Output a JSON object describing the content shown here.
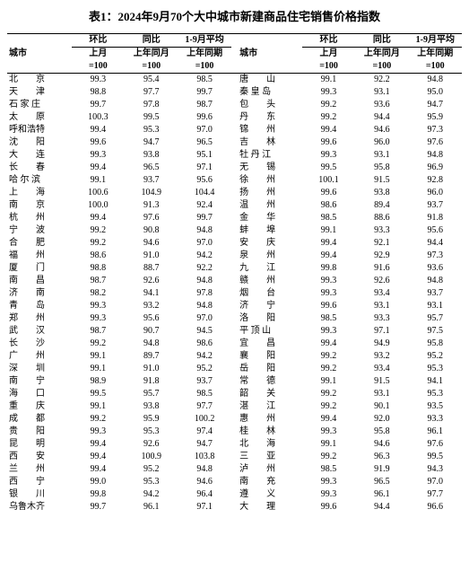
{
  "title": "表1：2024年9月70个大中城市新建商品住宅销售价格指数",
  "header": {
    "city": "城市",
    "grp1": "环比",
    "grp2": "同比",
    "grp3": "1-9月平均",
    "sub1a": "上月",
    "sub1b": "=100",
    "sub2a": "上年同月",
    "sub2b": "=100",
    "sub3a": "上年同期",
    "sub3b": "=100"
  },
  "rows": [
    {
      "c1": "北　　京",
      "v1": "99.3",
      "v2": "95.4",
      "v3": "98.5",
      "c2": "唐　　山",
      "v4": "99.1",
      "v5": "92.2",
      "v6": "94.8"
    },
    {
      "c1": "天　　津",
      "v1": "98.8",
      "v2": "97.7",
      "v3": "99.7",
      "c2": "秦 皇 岛",
      "v4": "99.3",
      "v5": "93.1",
      "v6": "95.0"
    },
    {
      "c1": "石 家 庄",
      "v1": "99.7",
      "v2": "97.8",
      "v3": "98.7",
      "c2": "包　　头",
      "v4": "99.2",
      "v5": "93.6",
      "v6": "94.7"
    },
    {
      "c1": "太　　原",
      "v1": "100.3",
      "v2": "99.5",
      "v3": "99.6",
      "c2": "丹　　东",
      "v4": "99.2",
      "v5": "94.4",
      "v6": "95.9"
    },
    {
      "c1": "呼和浩特",
      "v1": "99.4",
      "v2": "95.3",
      "v3": "97.0",
      "c2": "锦　　州",
      "v4": "99.4",
      "v5": "94.6",
      "v6": "97.3"
    },
    {
      "c1": "沈　　阳",
      "v1": "99.6",
      "v2": "94.7",
      "v3": "96.5",
      "c2": "吉　　林",
      "v4": "99.6",
      "v5": "96.0",
      "v6": "97.6"
    },
    {
      "c1": "大　　连",
      "v1": "99.3",
      "v2": "93.8",
      "v3": "95.1",
      "c2": "牡 丹 江",
      "v4": "99.3",
      "v5": "93.1",
      "v6": "94.8"
    },
    {
      "c1": "长　　春",
      "v1": "99.4",
      "v2": "96.5",
      "v3": "97.1",
      "c2": "无　　锡",
      "v4": "99.5",
      "v5": "95.8",
      "v6": "96.9"
    },
    {
      "c1": "哈 尔 滨",
      "v1": "99.1",
      "v2": "93.7",
      "v3": "95.6",
      "c2": "徐　　州",
      "v4": "100.1",
      "v5": "91.5",
      "v6": "92.8"
    },
    {
      "c1": "上　　海",
      "v1": "100.6",
      "v2": "104.9",
      "v3": "104.4",
      "c2": "扬　　州",
      "v4": "99.6",
      "v5": "93.8",
      "v6": "96.0"
    },
    {
      "c1": "南　　京",
      "v1": "100.0",
      "v2": "91.3",
      "v3": "92.4",
      "c2": "温　　州",
      "v4": "98.6",
      "v5": "89.4",
      "v6": "93.7"
    },
    {
      "c1": "杭　　州",
      "v1": "99.4",
      "v2": "97.6",
      "v3": "99.7",
      "c2": "金　　华",
      "v4": "98.5",
      "v5": "88.6",
      "v6": "91.8"
    },
    {
      "c1": "宁　　波",
      "v1": "99.2",
      "v2": "90.8",
      "v3": "94.8",
      "c2": "蚌　　埠",
      "v4": "99.1",
      "v5": "93.3",
      "v6": "95.6"
    },
    {
      "c1": "合　　肥",
      "v1": "99.2",
      "v2": "94.6",
      "v3": "97.0",
      "c2": "安　　庆",
      "v4": "99.4",
      "v5": "92.1",
      "v6": "94.4"
    },
    {
      "c1": "福　　州",
      "v1": "98.6",
      "v2": "91.0",
      "v3": "94.2",
      "c2": "泉　　州",
      "v4": "99.4",
      "v5": "92.9",
      "v6": "97.3"
    },
    {
      "c1": "厦　　门",
      "v1": "98.8",
      "v2": "88.7",
      "v3": "92.2",
      "c2": "九　　江",
      "v4": "99.8",
      "v5": "91.6",
      "v6": "93.6"
    },
    {
      "c1": "南　　昌",
      "v1": "98.7",
      "v2": "92.6",
      "v3": "94.8",
      "c2": "赣　　州",
      "v4": "99.3",
      "v5": "92.6",
      "v6": "94.8"
    },
    {
      "c1": "济　　南",
      "v1": "98.2",
      "v2": "94.1",
      "v3": "97.8",
      "c2": "烟　　台",
      "v4": "99.3",
      "v5": "93.4",
      "v6": "93.7"
    },
    {
      "c1": "青　　岛",
      "v1": "99.3",
      "v2": "93.2",
      "v3": "94.8",
      "c2": "济　　宁",
      "v4": "99.6",
      "v5": "93.1",
      "v6": "93.1"
    },
    {
      "c1": "郑　　州",
      "v1": "99.3",
      "v2": "95.6",
      "v3": "97.0",
      "c2": "洛　　阳",
      "v4": "98.5",
      "v5": "93.3",
      "v6": "95.7"
    },
    {
      "c1": "武　　汉",
      "v1": "98.7",
      "v2": "90.7",
      "v3": "94.5",
      "c2": "平 顶 山",
      "v4": "99.3",
      "v5": "97.1",
      "v6": "97.5"
    },
    {
      "c1": "长　　沙",
      "v1": "99.2",
      "v2": "94.8",
      "v3": "98.6",
      "c2": "宜　　昌",
      "v4": "99.4",
      "v5": "94.9",
      "v6": "95.8"
    },
    {
      "c1": "广　　州",
      "v1": "99.1",
      "v2": "89.7",
      "v3": "94.2",
      "c2": "襄　　阳",
      "v4": "99.2",
      "v5": "93.2",
      "v6": "95.2"
    },
    {
      "c1": "深　　圳",
      "v1": "99.1",
      "v2": "91.0",
      "v3": "95.2",
      "c2": "岳　　阳",
      "v4": "99.2",
      "v5": "93.4",
      "v6": "95.3"
    },
    {
      "c1": "南　　宁",
      "v1": "98.9",
      "v2": "91.8",
      "v3": "93.7",
      "c2": "常　　德",
      "v4": "99.1",
      "v5": "91.5",
      "v6": "94.1"
    },
    {
      "c1": "海　　口",
      "v1": "99.5",
      "v2": "95.7",
      "v3": "98.5",
      "c2": "韶　　关",
      "v4": "99.2",
      "v5": "93.1",
      "v6": "95.3"
    },
    {
      "c1": "重　　庆",
      "v1": "99.1",
      "v2": "93.8",
      "v3": "97.7",
      "c2": "湛　　江",
      "v4": "99.2",
      "v5": "90.1",
      "v6": "93.5"
    },
    {
      "c1": "成　　都",
      "v1": "99.2",
      "v2": "95.9",
      "v3": "100.2",
      "c2": "惠　　州",
      "v4": "99.4",
      "v5": "92.0",
      "v6": "93.3"
    },
    {
      "c1": "贵　　阳",
      "v1": "99.3",
      "v2": "95.3",
      "v3": "97.4",
      "c2": "桂　　林",
      "v4": "99.3",
      "v5": "95.8",
      "v6": "96.1"
    },
    {
      "c1": "昆　　明",
      "v1": "99.4",
      "v2": "92.6",
      "v3": "94.7",
      "c2": "北　　海",
      "v4": "99.1",
      "v5": "94.6",
      "v6": "97.6"
    },
    {
      "c1": "西　　安",
      "v1": "99.4",
      "v2": "100.9",
      "v3": "103.8",
      "c2": "三　　亚",
      "v4": "99.2",
      "v5": "96.3",
      "v6": "99.5"
    },
    {
      "c1": "兰　　州",
      "v1": "99.4",
      "v2": "95.2",
      "v3": "94.8",
      "c2": "泸　　州",
      "v4": "98.5",
      "v5": "91.9",
      "v6": "94.3"
    },
    {
      "c1": "西　　宁",
      "v1": "99.0",
      "v2": "95.3",
      "v3": "94.6",
      "c2": "南　　充",
      "v4": "99.3",
      "v5": "96.5",
      "v6": "97.0"
    },
    {
      "c1": "银　　川",
      "v1": "99.8",
      "v2": "94.2",
      "v3": "96.4",
      "c2": "遵　　义",
      "v4": "99.3",
      "v5": "96.1",
      "v6": "97.7"
    },
    {
      "c1": "乌鲁木齐",
      "v1": "99.7",
      "v2": "96.1",
      "v3": "97.1",
      "c2": "大　　理",
      "v4": "99.6",
      "v5": "94.4",
      "v6": "96.6"
    }
  ]
}
